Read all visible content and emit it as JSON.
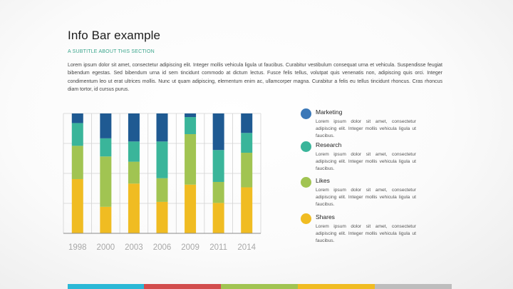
{
  "slide": {
    "title": "Info Bar example",
    "subtitle": "A SUBTITLE ABOUT THIS SECTION",
    "body": "Lorem ipsum dolor sit amet, consectetur adipiscing elit. Integer mollis vehicula ligula ut faucibus. Curabitur vestibulum consequat urna et vehicula. Suspendisse feugiat bibendum egestas. Sed bibendum urna id sem tincidunt commodo at dictum lectus. Fusce felis tellus, volutpat quis venenatis non, adipiscing quis orci. Integer condimentum leo ut erat ultrices mollis. Nunc ut quam adipiscing, elementum enim ac, ullamcorper magna. Curabitur a felis eu tellus tincidunt rhoncus. Cras rhoncus diam tortor, id cursus purus."
  },
  "legend": [
    {
      "name": "Marketing",
      "color": "#1f5a92",
      "dot_color": "#3b78b8",
      "desc": "Lorem ipsum dolor sit amet, consectetur adipiscing elit. Integer mollis vehicula ligula ut faucibus."
    },
    {
      "name": "Research",
      "color": "#3ab59a",
      "dot_color": "#3ab59a",
      "desc": "Lorem ipsum dolor sit amet, consectetur adipiscing elit. Integer mollis vehicula ligula ut faucibus."
    },
    {
      "name": "Likes",
      "color": "#a1c452",
      "dot_color": "#a1c452",
      "desc": "Lorem ipsum dolor sit amet, consectetur adipiscing elit. Integer mollis vehicula ligula ut faucibus."
    },
    {
      "name": "Shares",
      "color": "#f0bc22",
      "dot_color": "#f0bc22",
      "desc": "Lorem ipsum dolor sit amet, consectetur adipiscing elit. Integer mollis vehicula ligula ut faucibus."
    }
  ],
  "chart_data": {
    "type": "bar",
    "stacked": true,
    "categories": [
      "1998",
      "2000",
      "2003",
      "2006",
      "2009",
      "2011",
      "2014"
    ],
    "series": [
      {
        "name": "Shares",
        "color": "#f0bc22",
        "values": [
          36.2,
          17.7,
          33.2,
          21.0,
          32.5,
          20.3,
          30.7
        ]
      },
      {
        "name": "Likes",
        "color": "#a1c452",
        "values": [
          22.2,
          33.6,
          14.6,
          15.8,
          33.7,
          14.0,
          23.1
        ]
      },
      {
        "name": "Research",
        "color": "#3ab59a",
        "values": [
          15.2,
          12.1,
          13.5,
          24.5,
          11.4,
          21.3,
          13.2
        ]
      },
      {
        "name": "Marketing",
        "color": "#1f5a92",
        "values": [
          6.4,
          16.6,
          18.7,
          18.7,
          2.4,
          24.4,
          13.0
        ]
      }
    ],
    "ylim": [
      0,
      80
    ],
    "grid": true,
    "legend_position": "right"
  },
  "footer_colors": [
    "#2bb8d6",
    "#d24d4d",
    "#a1c452",
    "#f0bc22",
    "#bdbdbd"
  ]
}
